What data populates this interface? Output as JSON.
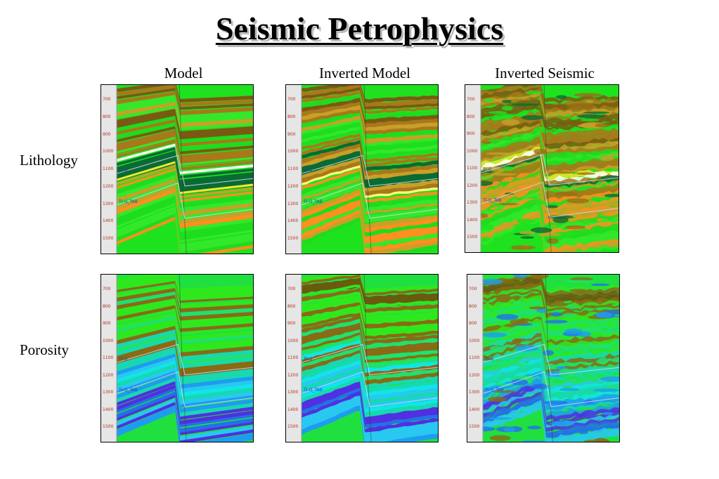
{
  "title": "Seismic Petrophysics",
  "columns": [
    "Model",
    "Inverted Model",
    "Inverted Seismic"
  ],
  "rows": [
    "Lithology",
    "Porosity"
  ],
  "depth_ticks": [
    "700",
    "800",
    "900",
    "1000",
    "1100",
    "1200",
    "1300",
    "1400",
    "1500"
  ],
  "horizon_labels": [
    "TI-G",
    "TI-G_TAB"
  ],
  "colors": {
    "tick_text": "#b03020",
    "horizon_text": "#2040c0",
    "gutter": "#e6e6e6"
  }
}
